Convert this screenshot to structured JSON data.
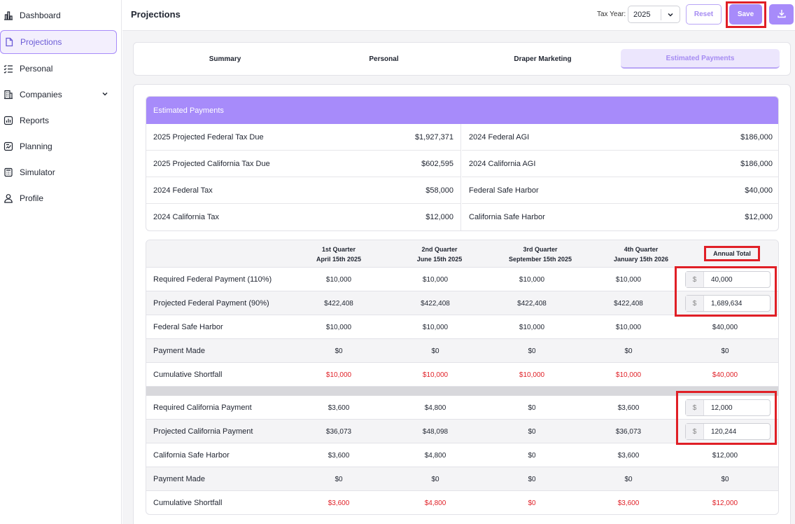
{
  "sidebar": {
    "items": [
      {
        "label": "Dashboard"
      },
      {
        "label": "Projections"
      },
      {
        "label": "Personal"
      },
      {
        "label": "Companies"
      },
      {
        "label": "Reports"
      },
      {
        "label": "Planning"
      },
      {
        "label": "Simulator"
      },
      {
        "label": "Profile"
      }
    ]
  },
  "header": {
    "title": "Projections",
    "tax_year_label": "Tax Year:",
    "tax_year_value": "2025",
    "reset_label": "Reset",
    "save_label": "Save"
  },
  "tabs": [
    {
      "label": "Summary"
    },
    {
      "label": "Personal"
    },
    {
      "label": "Draper Marketing"
    },
    {
      "label": "Estimated Payments"
    }
  ],
  "summary": {
    "title": "Estimated Payments",
    "left": [
      {
        "label": "2025 Projected Federal Tax Due",
        "value": "$1,927,371"
      },
      {
        "label": "2025 Projected California Tax Due",
        "value": "$602,595"
      },
      {
        "label": "2024 Federal Tax",
        "value": "$58,000"
      },
      {
        "label": "2024 California Tax",
        "value": "$12,000"
      }
    ],
    "right": [
      {
        "label": "2024 Federal AGI",
        "value": "$186,000"
      },
      {
        "label": "2024 California AGI",
        "value": "$186,000"
      },
      {
        "label": "Federal Safe Harbor",
        "value": "$40,000"
      },
      {
        "label": "California Safe Harbor",
        "value": "$12,000"
      }
    ]
  },
  "payments": {
    "headers": [
      {
        "line1": "1st Quarter",
        "line2": "April 15th 2025"
      },
      {
        "line1": "2nd Quarter",
        "line2": "June 15th 2025"
      },
      {
        "line1": "3rd Quarter",
        "line2": "September 15th 2025"
      },
      {
        "line1": "4th Quarter",
        "line2": "January 15th 2026"
      }
    ],
    "annual_header": "Annual Total",
    "currency_prefix": "$",
    "federal": [
      {
        "label": "Required Federal Payment (110%)",
        "q": [
          "$10,000",
          "$10,000",
          "$10,000",
          "$10,000"
        ],
        "annual_input": "40,000"
      },
      {
        "label": "Projected Federal Payment (90%)",
        "q": [
          "$422,408",
          "$422,408",
          "$422,408",
          "$422,408"
        ],
        "annual_input": "1,689,634"
      },
      {
        "label": "Federal Safe Harbor",
        "q": [
          "$10,000",
          "$10,000",
          "$10,000",
          "$10,000"
        ],
        "annual": "$40,000"
      },
      {
        "label": "Payment Made",
        "q": [
          "$0",
          "$0",
          "$0",
          "$0"
        ],
        "annual": "$0"
      },
      {
        "label": "Cumulative Shortfall",
        "q": [
          "$10,000",
          "$10,000",
          "$10,000",
          "$10,000"
        ],
        "annual": "$40,000"
      }
    ],
    "california": [
      {
        "label": "Required California Payment",
        "q": [
          "$3,600",
          "$4,800",
          "$0",
          "$3,600"
        ],
        "annual_input": "12,000"
      },
      {
        "label": "Projected California Payment",
        "q": [
          "$36,073",
          "$48,098",
          "$0",
          "$36,073"
        ],
        "annual_input": "120,244"
      },
      {
        "label": "California Safe Harbor",
        "q": [
          "$3,600",
          "$4,800",
          "$0",
          "$3,600"
        ],
        "annual": "$12,000"
      },
      {
        "label": "Payment Made",
        "q": [
          "$0",
          "$0",
          "$0",
          "$0"
        ],
        "annual": "$0"
      },
      {
        "label": "Cumulative Shortfall",
        "q": [
          "$3,600",
          "$4,800",
          "$0",
          "$3,600"
        ],
        "annual": "$12,000"
      }
    ]
  },
  "colors": {
    "accent": "#a78bfa",
    "highlight": "#e01f26",
    "shortfall": "#e01f26"
  },
  "icons": {
    "dashboard": "bar-chart-icon",
    "projections": "document-icon",
    "personal": "checklist-icon",
    "companies": "building-icon",
    "reports": "report-icon",
    "planning": "planning-icon",
    "simulator": "calculator-icon",
    "profile": "user-icon",
    "download": "download-icon"
  }
}
